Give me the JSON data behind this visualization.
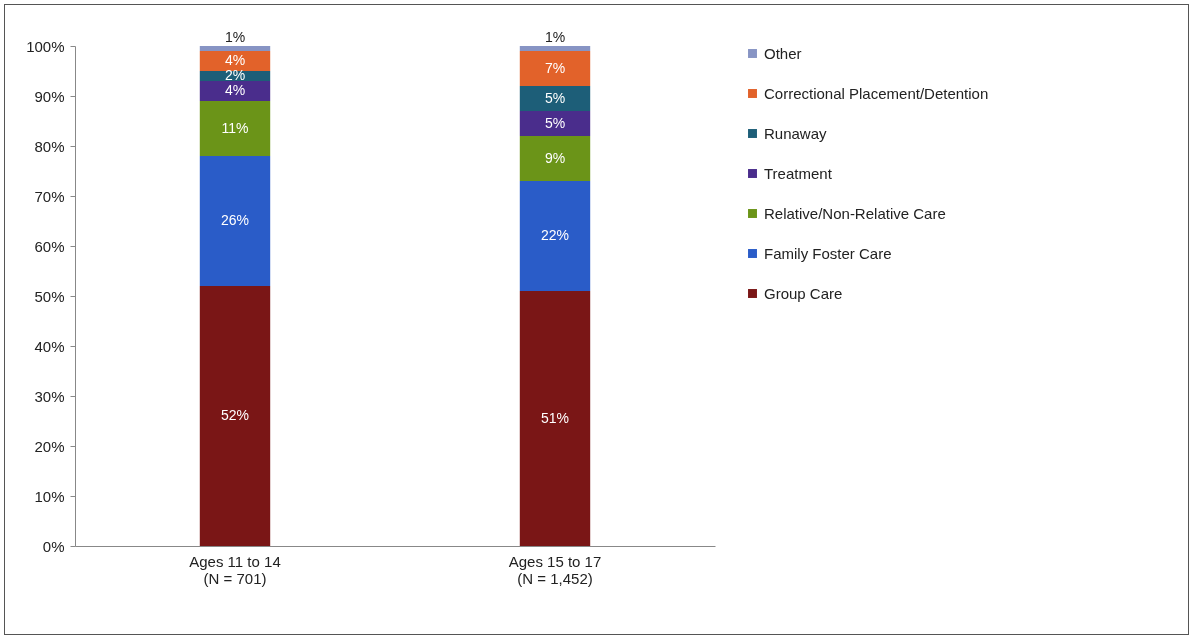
{
  "chart_data": {
    "type": "bar",
    "stacked": true,
    "categories": [
      "Ages 11 to 14\n(N = 701)",
      "Ages 15 to 17\n(N = 1,452)"
    ],
    "series": [
      {
        "name": "Group Care",
        "color": "#7a1616",
        "values": [
          52,
          51
        ],
        "value_labels": [
          "52%",
          "51%"
        ]
      },
      {
        "name": "Family Foster Care",
        "color": "#2a5cc8",
        "values": [
          26,
          22
        ],
        "value_labels": [
          "26%",
          "22%"
        ]
      },
      {
        "name": "Relative/Non-Relative Care",
        "color": "#6b9418",
        "values": [
          11,
          9
        ],
        "value_labels": [
          "11%",
          "9%"
        ]
      },
      {
        "name": "Treatment",
        "color": "#4a2d8c",
        "values": [
          4,
          5
        ],
        "value_labels": [
          "4%",
          "5%"
        ]
      },
      {
        "name": "Runaway",
        "color": "#1d5e78",
        "values": [
          2,
          5
        ],
        "value_labels": [
          "2%",
          "5%"
        ]
      },
      {
        "name": "Correctional Placement/Detention",
        "color": "#e2622a",
        "values": [
          4,
          7
        ],
        "value_labels": [
          "4%",
          "7%"
        ]
      },
      {
        "name": "Other",
        "color": "#8794c4",
        "values": [
          1,
          1
        ],
        "value_labels": [
          "1%",
          "1%"
        ]
      }
    ],
    "ylim": [
      0,
      100
    ],
    "yticks": [
      {
        "value": 0,
        "label": "0%"
      },
      {
        "value": 10,
        "label": "10%"
      },
      {
        "value": 20,
        "label": "20%"
      },
      {
        "value": 30,
        "label": "30%"
      },
      {
        "value": 40,
        "label": "40%"
      },
      {
        "value": 50,
        "label": "50%"
      },
      {
        "value": 60,
        "label": "60%"
      },
      {
        "value": 70,
        "label": "70%"
      },
      {
        "value": 80,
        "label": "80%"
      },
      {
        "value": 90,
        "label": "90%"
      },
      {
        "value": 100,
        "label": "100%"
      }
    ],
    "legend": "right",
    "grid": false
  }
}
